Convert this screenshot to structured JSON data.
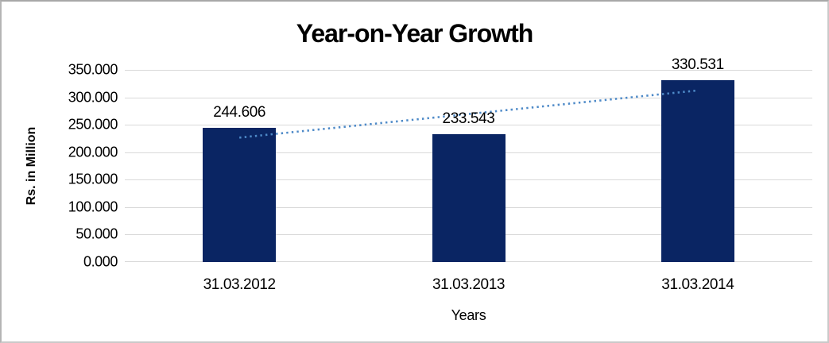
{
  "chart_data": {
    "type": "bar",
    "title": "Year-on-Year Growth",
    "xlabel": "Years",
    "ylabel": "Rs. in Million",
    "categories": [
      "31.03.2012",
      "31.03.2013",
      "31.03.2014"
    ],
    "values": [
      244.606,
      233.543,
      330.531
    ],
    "data_labels": [
      "244.606",
      "233.543",
      "330.531"
    ],
    "ylim": [
      0,
      350
    ],
    "ytick_step": 50,
    "yticks": [
      "350.000",
      "300.000",
      "250.000",
      "200.000",
      "150.000",
      "100.000",
      "50.000",
      "0.000"
    ],
    "grid": true,
    "legend": "none",
    "bar_color": "#0A2563",
    "grid_color": "#D9D9D9",
    "text_color": "#000000",
    "background": "#FFFFFF",
    "trendline": {
      "type": "linear",
      "style": "dotted",
      "color": "#4E8AC8",
      "start_value": 226.6,
      "end_value": 312.5
    }
  }
}
